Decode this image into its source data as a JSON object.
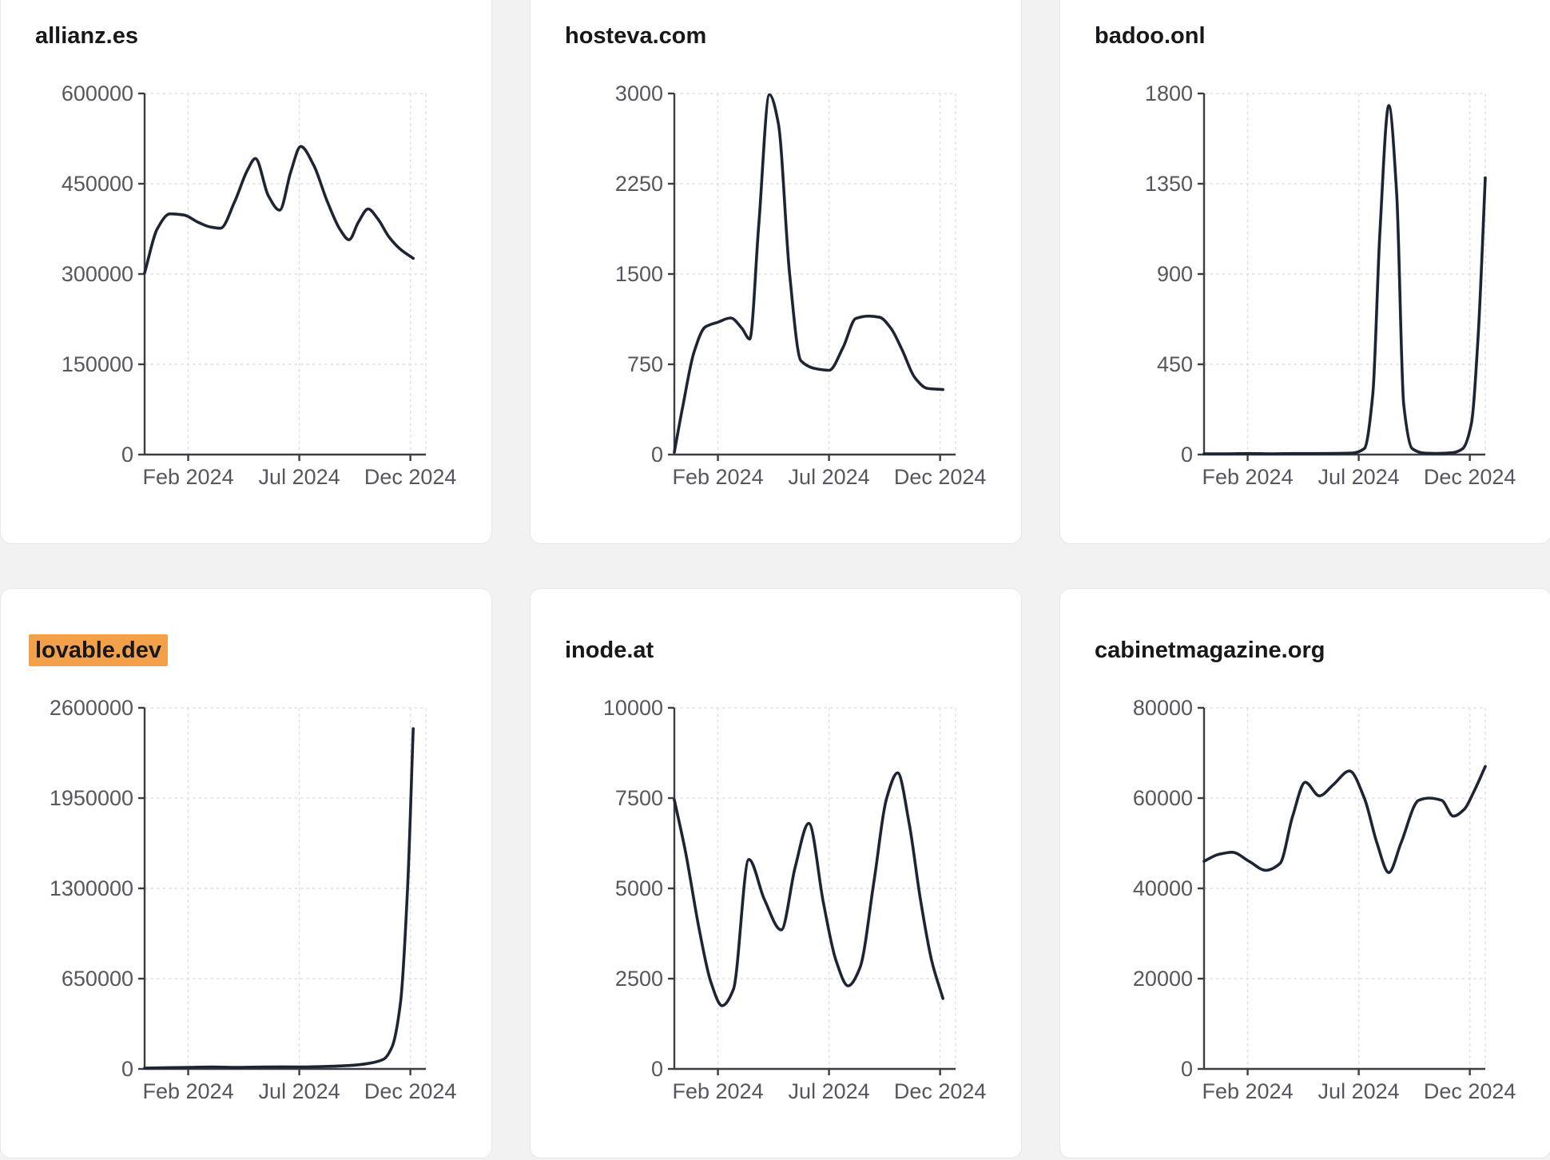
{
  "style": {
    "page_background": "#f2f2f3",
    "card_background": "#ffffff",
    "line_color": "#1d2433",
    "grid_color": "#e0e0e4",
    "axis_color": "#3d3d42",
    "tick_label_color": "#565660",
    "title_color": "#17171c",
    "highlight_color": "#f2a04a"
  },
  "chart_data": [
    {
      "type": "line",
      "title": "allianz.es",
      "highlighted": false,
      "x_ticks": [
        {
          "pos": 0.155,
          "label": "Feb 2024"
        },
        {
          "pos": 0.55,
          "label": "Jul 2024"
        },
        {
          "pos": 0.945,
          "label": "Dec 2024"
        }
      ],
      "ylim": [
        0,
        600000
      ],
      "y_ticks": [
        0,
        150000,
        300000,
        450000,
        600000
      ],
      "grid": true,
      "x": [
        0,
        0.045,
        0.09,
        0.14,
        0.19,
        0.235,
        0.27,
        0.32,
        0.365,
        0.394,
        0.44,
        0.48,
        0.52,
        0.555,
        0.6,
        0.65,
        0.695,
        0.727,
        0.76,
        0.795,
        0.83,
        0.87,
        0.91,
        0.955
      ],
      "values": [
        302000,
        375000,
        400000,
        398000,
        386000,
        378000,
        376000,
        420000,
        472000,
        492000,
        430000,
        406000,
        470000,
        512000,
        482000,
        420000,
        374000,
        357000,
        386000,
        408000,
        391000,
        361000,
        341000,
        326000
      ]
    },
    {
      "type": "line",
      "title": "hosteva.com",
      "highlighted": false,
      "x_ticks": [
        {
          "pos": 0.155,
          "label": "Feb 2024"
        },
        {
          "pos": 0.55,
          "label": "Jul 2024"
        },
        {
          "pos": 0.945,
          "label": "Dec 2024"
        }
      ],
      "ylim": [
        0,
        3000
      ],
      "y_ticks": [
        0,
        750,
        1500,
        2250,
        3000
      ],
      "grid": true,
      "x": [
        0,
        0.03,
        0.07,
        0.11,
        0.155,
        0.2,
        0.24,
        0.268,
        0.3,
        0.338,
        0.37,
        0.41,
        0.45,
        0.5,
        0.55,
        0.6,
        0.645,
        0.69,
        0.73,
        0.77,
        0.81,
        0.855,
        0.9,
        0.955
      ],
      "values": [
        20,
        400,
        850,
        1060,
        1100,
        1135,
        1050,
        960,
        1900,
        2990,
        2750,
        1500,
        780,
        715,
        700,
        890,
        1130,
        1150,
        1140,
        1050,
        870,
        640,
        550,
        540
      ]
    },
    {
      "type": "line",
      "title": "badoo.onl",
      "highlighted": false,
      "x_ticks": [
        {
          "pos": 0.155,
          "label": "Feb 2024"
        },
        {
          "pos": 0.55,
          "label": "Jul 2024"
        },
        {
          "pos": 0.945,
          "label": "Dec 2024"
        }
      ],
      "ylim": [
        0,
        1800
      ],
      "y_ticks": [
        0,
        450,
        900,
        1350,
        1800
      ],
      "grid": true,
      "x": [
        0,
        0.08,
        0.16,
        0.24,
        0.32,
        0.4,
        0.47,
        0.53,
        0.57,
        0.6,
        0.625,
        0.657,
        0.685,
        0.71,
        0.74,
        0.78,
        0.83,
        0.886,
        0.92,
        0.95,
        0.975,
        1.0
      ],
      "values": [
        4,
        4,
        5,
        4,
        5,
        5,
        6,
        8,
        30,
        300,
        1100,
        1740,
        1300,
        250,
        30,
        8,
        6,
        10,
        30,
        150,
        600,
        1380
      ]
    },
    {
      "type": "line",
      "title": "lovable.dev",
      "highlighted": true,
      "x_ticks": [
        {
          "pos": 0.155,
          "label": "Feb 2024"
        },
        {
          "pos": 0.55,
          "label": "Jul 2024"
        },
        {
          "pos": 0.945,
          "label": "Dec 2024"
        }
      ],
      "ylim": [
        0,
        2600000
      ],
      "y_ticks": [
        0,
        650000,
        1300000,
        1950000,
        2600000
      ],
      "grid": true,
      "x": [
        0,
        0.08,
        0.16,
        0.24,
        0.32,
        0.4,
        0.48,
        0.56,
        0.64,
        0.7,
        0.76,
        0.81,
        0.85,
        0.88,
        0.91,
        0.935,
        0.955
      ],
      "values": [
        6000,
        9000,
        11000,
        14000,
        11000,
        13000,
        15000,
        14000,
        18000,
        22000,
        30000,
        45000,
        70000,
        160000,
        480000,
        1300000,
        2450000
      ]
    },
    {
      "type": "line",
      "title": "inode.at",
      "highlighted": false,
      "x_ticks": [
        {
          "pos": 0.155,
          "label": "Feb 2024"
        },
        {
          "pos": 0.55,
          "label": "Jul 2024"
        },
        {
          "pos": 0.945,
          "label": "Dec 2024"
        }
      ],
      "ylim": [
        0,
        10000
      ],
      "y_ticks": [
        0,
        2500,
        5000,
        7500,
        10000
      ],
      "grid": true,
      "x": [
        0,
        0.04,
        0.09,
        0.13,
        0.17,
        0.21,
        0.265,
        0.32,
        0.38,
        0.43,
        0.478,
        0.53,
        0.575,
        0.618,
        0.66,
        0.71,
        0.755,
        0.794,
        0.835,
        0.875,
        0.915,
        0.955
      ],
      "values": [
        7450,
        6000,
        3800,
        2400,
        1750,
        2200,
        5800,
        4700,
        3850,
        5600,
        6800,
        4600,
        3000,
        2300,
        2800,
        5200,
        7500,
        8200,
        6800,
        4700,
        3000,
        1950
      ]
    },
    {
      "type": "line",
      "title": "cabinetmagazine.org",
      "highlighted": false,
      "x_ticks": [
        {
          "pos": 0.155,
          "label": "Feb 2024"
        },
        {
          "pos": 0.55,
          "label": "Jul 2024"
        },
        {
          "pos": 0.945,
          "label": "Dec 2024"
        }
      ],
      "ylim": [
        0,
        80000
      ],
      "y_ticks": [
        0,
        20000,
        40000,
        60000,
        80000
      ],
      "grid": true,
      "x": [
        0,
        0.05,
        0.1,
        0.16,
        0.22,
        0.27,
        0.315,
        0.36,
        0.41,
        0.46,
        0.517,
        0.57,
        0.615,
        0.657,
        0.7,
        0.763,
        0.8,
        0.845,
        0.886,
        0.925,
        0.96,
        1.0
      ],
      "values": [
        46000,
        47500,
        48000,
        46000,
        44000,
        45500,
        56000,
        63500,
        60500,
        63000,
        66000,
        60000,
        50000,
        43500,
        50000,
        59500,
        60000,
        59500,
        56000,
        57500,
        61500,
        67000
      ]
    }
  ]
}
